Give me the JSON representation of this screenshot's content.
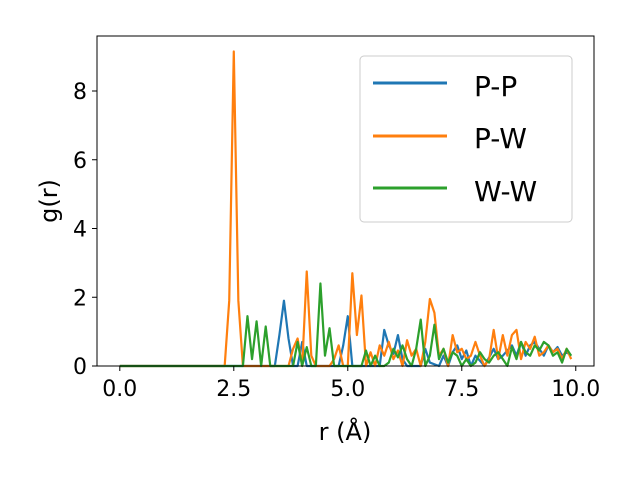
{
  "chart_data": {
    "type": "line",
    "title": "",
    "xlabel": "r (Å)",
    "ylabel": "g(r)",
    "xlim": [
      -0.5,
      10.4
    ],
    "ylim": [
      0,
      9.6
    ],
    "xticks": [
      0.0,
      2.5,
      5.0,
      7.5,
      10.0
    ],
    "xtick_labels": [
      "0.0",
      "2.5",
      "5.0",
      "7.5",
      "10.0"
    ],
    "yticks": [
      0,
      2,
      4,
      6,
      8
    ],
    "ytick_labels": [
      "0",
      "2",
      "4",
      "6",
      "8"
    ],
    "grid": false,
    "legend_position": "upper-right",
    "series": [
      {
        "name": "P-P",
        "color": "#1f77b4",
        "x": [
          0.0,
          3.4,
          3.5,
          3.6,
          3.7,
          3.8,
          3.9,
          4.0,
          4.1,
          4.8,
          4.9,
          5.0,
          5.1,
          5.7,
          5.8,
          5.9,
          6.0,
          6.1,
          6.2,
          6.3,
          6.6,
          6.7,
          6.8,
          7.0,
          7.1,
          7.2,
          7.3,
          7.4,
          7.5,
          7.6,
          7.7,
          7.8,
          8.0,
          8.2,
          8.3,
          8.4,
          8.6,
          8.7,
          8.8,
          8.9,
          9.0,
          9.1,
          9.2,
          9.3,
          9.4,
          9.5,
          9.6,
          9.7,
          9.8,
          9.9
        ],
        "y": [
          0.0,
          0.0,
          0.9,
          1.9,
          0.8,
          0.0,
          0.0,
          0.7,
          0.0,
          0.0,
          0.6,
          1.45,
          0.0,
          0.0,
          1.05,
          0.6,
          0.35,
          0.9,
          0.2,
          0.0,
          0.0,
          0.5,
          0.1,
          0.0,
          0.3,
          0.0,
          0.4,
          0.6,
          0.2,
          0.45,
          0.0,
          0.3,
          0.0,
          0.5,
          0.2,
          0.3,
          0.6,
          0.3,
          0.7,
          0.3,
          0.6,
          0.7,
          0.5,
          0.3,
          0.6,
          0.4,
          0.55,
          0.3,
          0.4,
          0.3
        ]
      },
      {
        "name": "P-W",
        "color": "#ff7f0e",
        "x": [
          0.0,
          2.3,
          2.4,
          2.5,
          2.6,
          2.7,
          2.8,
          2.9,
          3.6,
          3.7,
          3.8,
          3.9,
          4.0,
          4.1,
          4.2,
          4.3,
          4.4,
          4.5,
          4.6,
          4.7,
          4.8,
          4.9,
          5.0,
          5.1,
          5.2,
          5.3,
          5.4,
          5.5,
          5.6,
          5.7,
          5.8,
          5.9,
          6.0,
          6.1,
          6.2,
          6.3,
          6.4,
          6.5,
          6.6,
          6.7,
          6.8,
          6.9,
          7.0,
          7.1,
          7.2,
          7.3,
          7.4,
          7.5,
          7.6,
          7.7,
          7.8,
          7.9,
          8.0,
          8.1,
          8.2,
          8.3,
          8.4,
          8.5,
          8.6,
          8.7,
          8.8,
          8.9,
          9.0,
          9.1,
          9.2,
          9.3,
          9.4,
          9.5,
          9.6,
          9.7,
          9.8,
          9.9
        ],
        "y": [
          0.0,
          0.0,
          1.9,
          9.15,
          1.9,
          0.0,
          0.0,
          0.0,
          0.0,
          0.0,
          0.5,
          0.8,
          0.0,
          2.75,
          0.3,
          0.0,
          0.0,
          0.0,
          0.0,
          0.2,
          0.6,
          0.0,
          0.0,
          2.7,
          0.9,
          2.05,
          0.0,
          0.4,
          0.0,
          0.6,
          0.3,
          0.7,
          0.2,
          0.45,
          0.0,
          0.75,
          0.3,
          0.5,
          0.0,
          0.7,
          1.95,
          1.55,
          0.3,
          0.5,
          0.0,
          0.9,
          0.4,
          0.5,
          0.2,
          0.3,
          0.7,
          0.3,
          0.0,
          0.2,
          1.05,
          0.2,
          0.9,
          0.3,
          0.9,
          1.05,
          0.2,
          0.7,
          0.5,
          0.85,
          0.3,
          0.4,
          0.6,
          0.4,
          0.5,
          0.2,
          0.5,
          0.2
        ]
      },
      {
        "name": "W-W",
        "color": "#2ca02c",
        "x": [
          0.0,
          2.6,
          2.7,
          2.8,
          2.9,
          3.0,
          3.1,
          3.2,
          3.3,
          3.4,
          3.8,
          3.9,
          4.0,
          4.1,
          4.2,
          4.3,
          4.4,
          4.5,
          4.6,
          4.7,
          5.3,
          5.4,
          5.5,
          5.6,
          5.7,
          5.8,
          5.9,
          6.0,
          6.1,
          6.2,
          6.3,
          6.4,
          6.5,
          6.6,
          6.7,
          6.8,
          6.9,
          7.0,
          7.1,
          7.2,
          7.3,
          7.4,
          7.5,
          7.6,
          7.7,
          7.8,
          7.9,
          8.0,
          8.1,
          8.2,
          8.3,
          8.4,
          8.5,
          8.6,
          8.7,
          8.8,
          8.9,
          9.0,
          9.1,
          9.2,
          9.3,
          9.4,
          9.5,
          9.6,
          9.7,
          9.8,
          9.9
        ],
        "y": [
          0.0,
          0.0,
          0.0,
          1.45,
          0.2,
          1.3,
          0.0,
          1.15,
          0.0,
          0.0,
          0.0,
          0.7,
          0.0,
          0.55,
          0.0,
          0.0,
          2.4,
          0.3,
          1.1,
          0.0,
          0.0,
          0.45,
          0.0,
          0.3,
          0.0,
          0.0,
          0.1,
          0.5,
          0.25,
          0.6,
          0.2,
          0.0,
          0.5,
          1.35,
          0.0,
          0.3,
          1.2,
          0.2,
          0.5,
          0.1,
          0.4,
          0.3,
          0.0,
          0.2,
          0.0,
          0.1,
          0.4,
          0.2,
          0.1,
          0.3,
          0.4,
          0.2,
          0.0,
          0.55,
          0.2,
          0.7,
          0.4,
          0.3,
          0.6,
          0.45,
          0.7,
          0.6,
          0.3,
          0.4,
          0.1,
          0.5,
          0.3
        ]
      }
    ]
  }
}
